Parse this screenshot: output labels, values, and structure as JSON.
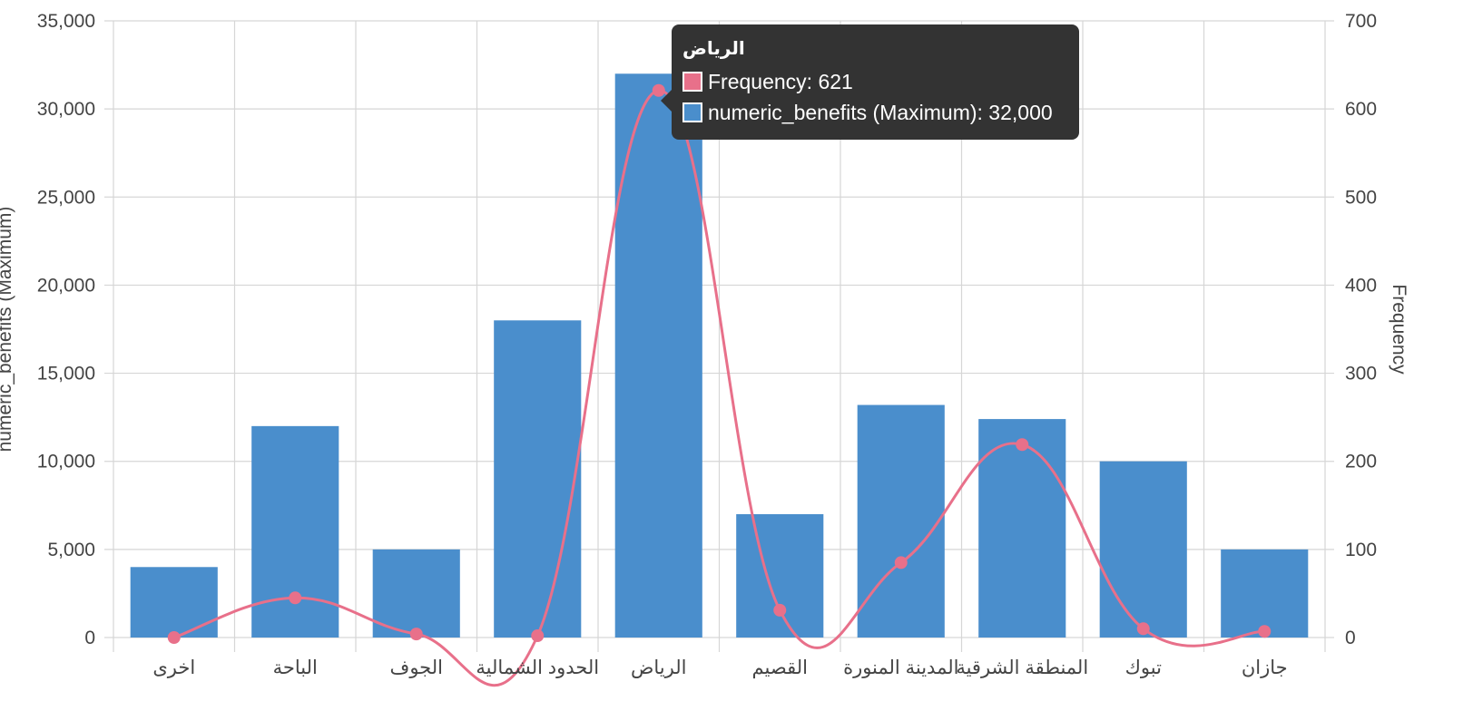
{
  "chart_data": {
    "type": "bar",
    "categories": [
      "اخرى",
      "الباحة",
      "الجوف",
      "الحدود الشمالية",
      "الرياض",
      "القصيم",
      "المدينة المنورة",
      "المنطقة الشرقية",
      "تبوك",
      "جازان"
    ],
    "series": [
      {
        "name": "numeric_benefits (Maximum)",
        "type": "bar",
        "axis": "left",
        "color": "#4a8ecc",
        "values": [
          4000,
          12000,
          5000,
          18000,
          32000,
          7000,
          13200,
          12400,
          10000,
          5000
        ]
      },
      {
        "name": "Frequency",
        "type": "line",
        "axis": "right",
        "color": "#e8708a",
        "values": [
          0,
          45,
          4,
          2,
          621,
          31,
          85,
          219,
          10,
          7
        ]
      }
    ],
    "left_axis": {
      "label": "numeric_benefits (Maximum)",
      "range": [
        0,
        35000
      ],
      "ticks": [
        "0",
        "5,000",
        "10,000",
        "15,000",
        "20,000",
        "25,000",
        "30,000",
        "35,000"
      ]
    },
    "right_axis": {
      "label": "Frequency",
      "range": [
        0,
        700
      ],
      "ticks": [
        "0",
        "100",
        "200",
        "300",
        "400",
        "500",
        "600",
        "700"
      ]
    },
    "grid": true,
    "legend": "none"
  },
  "tooltip": {
    "title": "الرياض",
    "rows": [
      {
        "label": "Frequency: 621",
        "color": "#e8708a"
      },
      {
        "label": "numeric_benefits (Maximum): 32,000",
        "color": "#4a8ecc"
      }
    ]
  }
}
